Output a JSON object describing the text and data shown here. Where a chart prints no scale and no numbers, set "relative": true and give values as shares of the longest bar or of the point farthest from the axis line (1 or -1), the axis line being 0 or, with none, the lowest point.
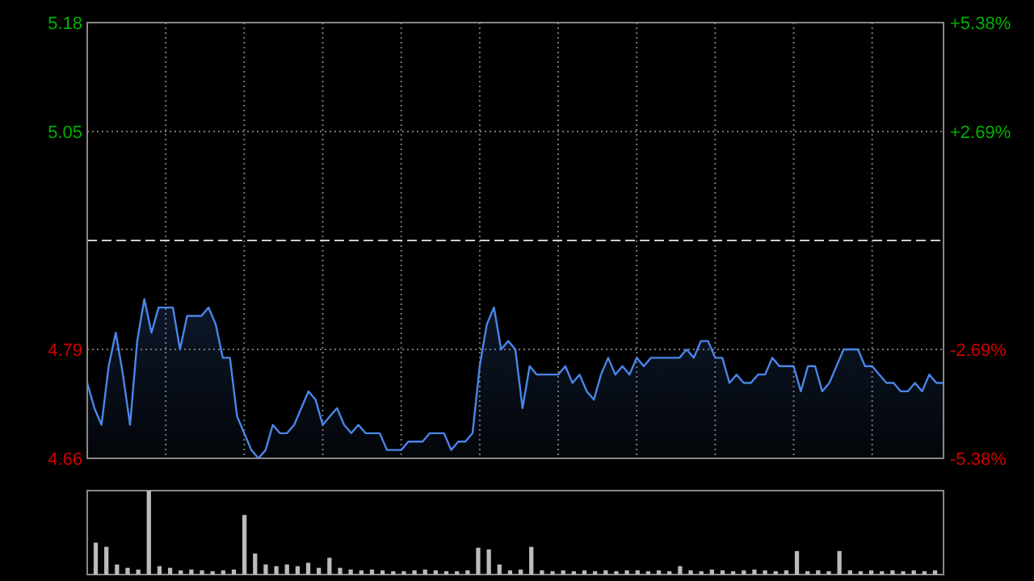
{
  "chart_data": [
    {
      "type": "area",
      "categories": [
        null,
        null,
        null,
        null,
        null,
        null,
        null,
        null,
        null,
        null,
        null,
        null,
        null,
        null,
        null,
        null,
        null,
        null,
        null,
        null,
        null,
        null,
        null,
        null,
        null,
        null,
        null,
        null,
        null,
        null,
        null,
        null,
        null,
        null,
        null,
        null,
        null,
        null,
        null,
        null,
        null,
        null,
        null,
        null,
        null,
        null,
        null,
        null,
        null,
        null,
        null,
        null,
        null,
        null,
        null,
        null,
        null,
        null,
        null,
        null,
        null,
        null,
        null,
        null,
        null,
        null,
        null,
        null,
        null,
        null,
        null,
        null,
        null,
        null,
        null,
        null,
        null,
        null,
        null,
        null,
        null,
        null,
        null,
        null,
        null,
        null,
        null,
        null,
        null,
        null,
        null,
        null,
        null,
        null,
        null,
        null,
        null,
        null,
        null,
        null,
        null,
        null,
        null,
        null,
        null,
        null,
        null,
        null,
        null,
        null,
        null,
        null,
        null,
        null,
        null,
        null,
        null,
        null,
        null,
        null,
        null
      ],
      "ylim": [
        4.66,
        5.18
      ],
      "yticks": [
        4.66,
        4.79,
        5.05,
        5.18
      ],
      "y2lim": [
        -5.38,
        5.38
      ],
      "y2ticks": [
        {
          "value": -5.38,
          "label": "-5.38%"
        },
        {
          "value": -2.69,
          "label": "-2.69%"
        },
        {
          "value": 2.69,
          "label": "+2.69%"
        },
        {
          "value": 5.38,
          "label": "+5.38%"
        }
      ],
      "grid": true,
      "ref_lines": [
        {
          "axis": "y",
          "value": 4.92,
          "line_style": "dashed",
          "color": "#cccccc"
        }
      ],
      "series": [
        {
          "color": "#4a86e8",
          "values": [
            4.75,
            4.72,
            4.7,
            4.77,
            4.81,
            4.76,
            4.7,
            4.8,
            4.85,
            4.81,
            4.84,
            4.84,
            4.84,
            4.79,
            4.83,
            4.83,
            4.83,
            4.84,
            4.82,
            4.78,
            4.78,
            4.71,
            4.69,
            4.67,
            4.66,
            4.67,
            4.7,
            4.69,
            4.69,
            4.7,
            4.72,
            4.74,
            4.73,
            4.7,
            4.71,
            4.72,
            4.7,
            4.69,
            4.7,
            4.69,
            4.69,
            4.69,
            4.67,
            4.67,
            4.67,
            4.68,
            4.68,
            4.68,
            4.69,
            4.69,
            4.69,
            4.67,
            4.68,
            4.68,
            4.69,
            4.77,
            4.82,
            4.84,
            4.79,
            4.8,
            4.79,
            4.72,
            4.77,
            4.76,
            4.76,
            4.76,
            4.76,
            4.77,
            4.75,
            4.76,
            4.74,
            4.73,
            4.76,
            4.78,
            4.76,
            4.77,
            4.76,
            4.78,
            4.77,
            4.78,
            4.78,
            4.78,
            4.78,
            4.78,
            4.79,
            4.78,
            4.8,
            4.8,
            4.78,
            4.78,
            4.75,
            4.76,
            4.75,
            4.75,
            4.76,
            4.76,
            4.78,
            4.77,
            4.77,
            4.77,
            4.74,
            4.77,
            4.77,
            4.74,
            4.75,
            4.77,
            4.79,
            4.79,
            4.79,
            4.77,
            4.77,
            4.76,
            4.75,
            4.75,
            4.74,
            4.74,
            4.75,
            4.74,
            4.76,
            4.75,
            4.75
          ]
        }
      ]
    },
    {
      "type": "bar",
      "relative": true,
      "color": "#bbbbbb",
      "categories": [
        null,
        null,
        null,
        null,
        null,
        null,
        null,
        null,
        null,
        null,
        null,
        null,
        null,
        null,
        null,
        null,
        null,
        null,
        null,
        null,
        null,
        null,
        null,
        null,
        null,
        null,
        null,
        null,
        null,
        null,
        null,
        null,
        null,
        null,
        null,
        null,
        null,
        null,
        null,
        null,
        null,
        null,
        null,
        null,
        null,
        null,
        null,
        null,
        null,
        null,
        null,
        null,
        null,
        null,
        null,
        null,
        null,
        null,
        null,
        null,
        null,
        null,
        null,
        null,
        null,
        null,
        null,
        null,
        null,
        null,
        null,
        null,
        null,
        null,
        null,
        null,
        null,
        null,
        null,
        null
      ],
      "values": [
        0.38,
        0.33,
        0.12,
        0.08,
        0.06,
        1,
        0.1,
        0.08,
        0.05,
        0.06,
        0.05,
        0.04,
        0.05,
        0.06,
        0.71,
        0.25,
        0.12,
        0.1,
        0.12,
        0.1,
        0.14,
        0.08,
        0.2,
        0.08,
        0.06,
        0.05,
        0.06,
        0.05,
        0.04,
        0.04,
        0.05,
        0.06,
        0.05,
        0.04,
        0.04,
        0.05,
        0.32,
        0.3,
        0.12,
        0.05,
        0.06,
        0.33,
        0.05,
        0.04,
        0.05,
        0.04,
        0.05,
        0.04,
        0.05,
        0.04,
        0.05,
        0.05,
        0.04,
        0.05,
        0.04,
        0.1,
        0.05,
        0.04,
        0.06,
        0.05,
        0.04,
        0.05,
        0.06,
        0.05,
        0.04,
        0.05,
        0.28,
        0.04,
        0.05,
        0.04,
        0.28,
        0.05,
        0.04,
        0.05,
        0.04,
        0.05,
        0.04,
        0.05,
        0.04,
        0.05
      ]
    }
  ]
}
